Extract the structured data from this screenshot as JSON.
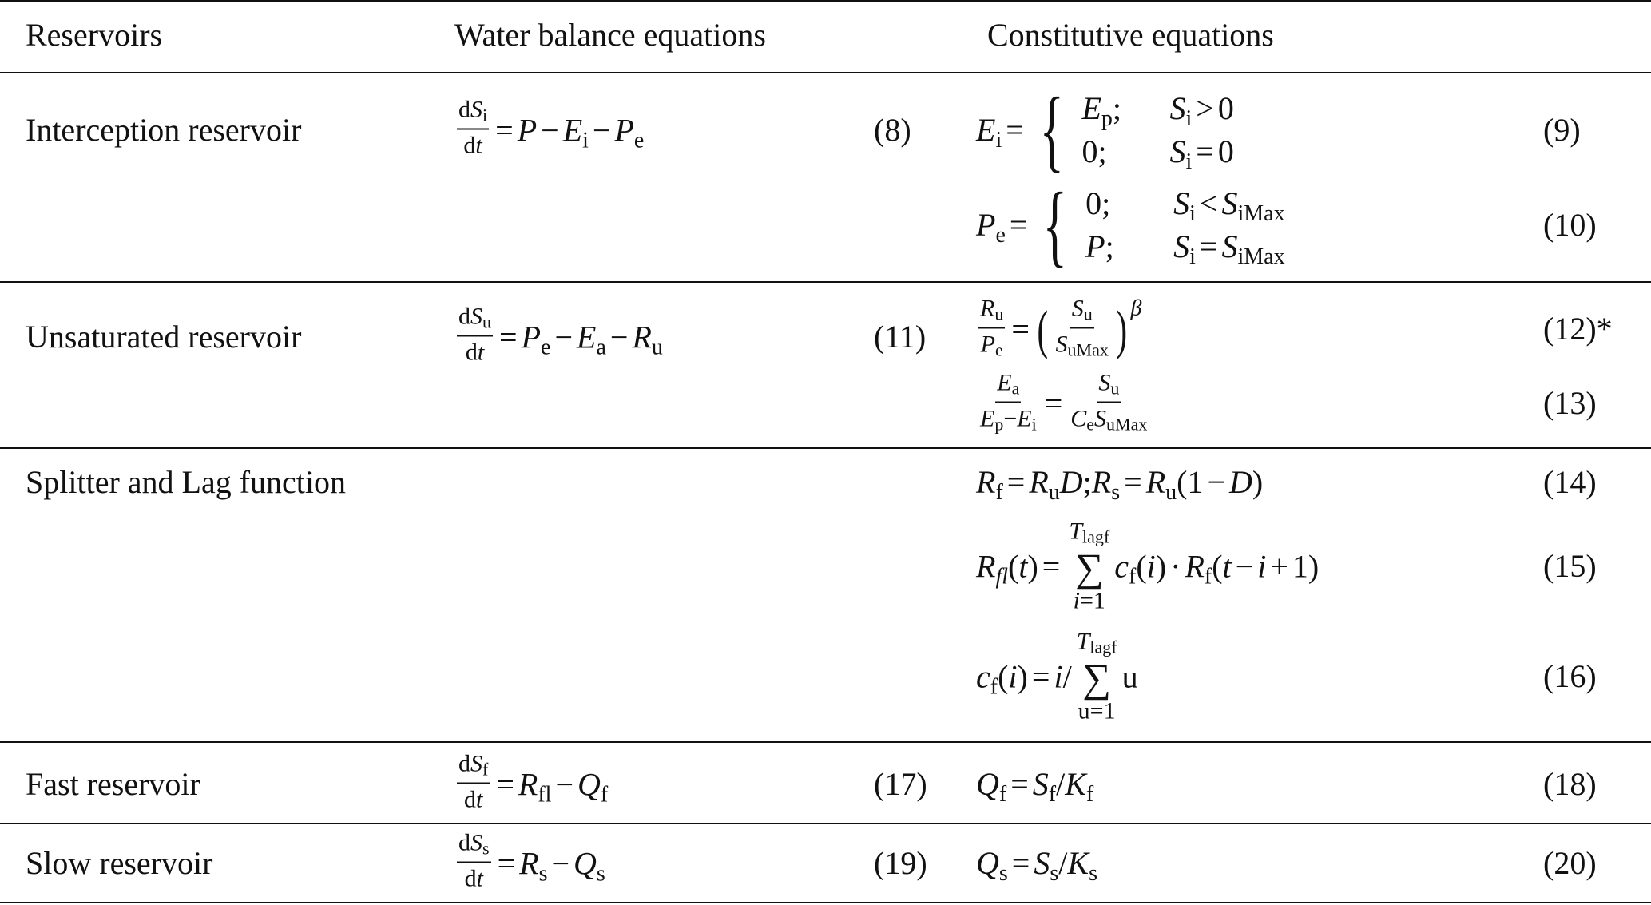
{
  "headers": {
    "reservoirs": "Reservoirs",
    "water_balance": "Water balance equations",
    "constitutive": "Constitutive equations"
  },
  "rows": [
    {
      "name": "Interception reservoir",
      "balance": {
        "num": "(8)",
        "eq": [
          {
            "frac": {
              "n": [
                "d",
                {
                  "v": "S",
                  "sub": "i"
                }
              ],
              "d": [
                "d",
                {
                  "v": "t"
                }
              ]
            }
          },
          {
            "op": "="
          },
          {
            "v": "P"
          },
          {
            "op": "−"
          },
          {
            "v": "E",
            "sub": "i"
          },
          {
            "op": "−"
          },
          {
            "v": "P",
            "sub": "e"
          }
        ]
      },
      "constitutive": [
        {
          "num": "(9)",
          "eq": [
            {
              "v": "E",
              "sub": "i"
            },
            {
              "op": "="
            },
            {
              "cases": [
                [
                  [
                    {
                      "v": "E",
                      "sub": "p"
                    },
                    ";"
                  ],
                  [
                    {
                      "v": "S",
                      "sub": "i"
                    },
                    {
                      "op": ">"
                    },
                    "0"
                  ]
                ],
                [
                  [
                    "0;"
                  ],
                  [
                    {
                      "v": "S",
                      "sub": "i"
                    },
                    {
                      "op": "="
                    },
                    "0"
                  ]
                ]
              ]
            }
          ]
        },
        {
          "num": "(10)",
          "eq": [
            {
              "v": "P",
              "sub": "e"
            },
            {
              "op": "="
            },
            {
              "cases": [
                [
                  [
                    "0;"
                  ],
                  [
                    {
                      "v": "S",
                      "sub": "i"
                    },
                    {
                      "op": "<"
                    },
                    {
                      "v": "S",
                      "sub": "iMax"
                    }
                  ]
                ],
                [
                  [
                    {
                      "v": "P"
                    },
                    ";"
                  ],
                  [
                    {
                      "v": "S",
                      "sub": "i"
                    },
                    {
                      "op": "="
                    },
                    {
                      "v": "S",
                      "sub": "iMax"
                    }
                  ]
                ]
              ]
            }
          ]
        }
      ]
    },
    {
      "name": "Unsaturated reservoir",
      "balance": {
        "num": "(11)",
        "eq": [
          {
            "frac": {
              "n": [
                "d",
                {
                  "v": "S",
                  "sub": "u"
                }
              ],
              "d": [
                "d",
                {
                  "v": "t"
                }
              ]
            }
          },
          {
            "op": "="
          },
          {
            "v": "P",
            "sub": "e"
          },
          {
            "op": "−"
          },
          {
            "v": "E",
            "sub": "a"
          },
          {
            "op": "−"
          },
          {
            "v": "R",
            "sub": "u"
          }
        ]
      },
      "constitutive": [
        {
          "num": "(12)*",
          "eq": [
            {
              "frac": {
                "n": [
                  {
                    "v": "R",
                    "sub": "u"
                  }
                ],
                "d": [
                  {
                    "v": "P",
                    "sub": "e"
                  }
                ]
              }
            },
            {
              "op": "="
            },
            {
              "paren": [
                {
                  "frac": {
                    "n": [
                      {
                        "v": "S",
                        "sub": "u"
                      }
                    ],
                    "d": [
                      {
                        "v": "S",
                        "sub": "uMax"
                      }
                    ]
                  }
                }
              ],
              "sup": "β"
            }
          ]
        },
        {
          "num": "(13)",
          "eq": [
            {
              "frac": {
                "n": [
                  {
                    "v": "E",
                    "sub": "a"
                  }
                ],
                "d": [
                  {
                    "v": "E",
                    "sub": "p"
                  },
                  "−",
                  {
                    "v": "E",
                    "sub": "i"
                  }
                ]
              }
            },
            {
              "op": "="
            },
            {
              "frac": {
                "n": [
                  {
                    "v": "S",
                    "sub": "u"
                  }
                ],
                "d": [
                  {
                    "v": "C",
                    "sub": "e"
                  },
                  {
                    "v": "S",
                    "sub": "uMax"
                  }
                ]
              }
            }
          ]
        }
      ]
    },
    {
      "name": "Splitter and Lag function",
      "balance": null,
      "constitutive": [
        {
          "num": "(14)",
          "eq": [
            {
              "v": "R",
              "sub": "f"
            },
            {
              "op": "="
            },
            {
              "v": "R",
              "sub": "u"
            },
            {
              "v": "D"
            },
            ";  ",
            {
              "v": "R",
              "sub": "s"
            },
            {
              "op": "="
            },
            {
              "v": "R",
              "sub": "u"
            },
            "(1",
            {
              "op": "−"
            },
            {
              "v": "D"
            },
            ")"
          ]
        },
        {
          "num": "(15)",
          "eq": [
            {
              "v": "R",
              "subi": "fl"
            },
            "(",
            {
              "v": "t"
            },
            ")",
            {
              "op": "="
            },
            {
              "sum": {
                "top": [
                  {
                    "v": "T",
                    "sub": "lagf"
                  }
                ],
                "bot": [
                  {
                    "v": "i"
                  },
                  "=1"
                ]
              }
            },
            {
              "v": "c",
              "sub": "f"
            },
            "(",
            {
              "v": "i"
            },
            ")",
            {
              "op": "·"
            },
            {
              "v": "R",
              "sub": "f"
            },
            "(",
            {
              "v": "t"
            },
            {
              "op": "−"
            },
            {
              "v": "i"
            },
            {
              "op": "+"
            },
            "1)"
          ]
        },
        {
          "num": "(16)",
          "eq": [
            {
              "v": "c",
              "sub": "f"
            },
            "(",
            {
              "v": "i"
            },
            ")",
            {
              "op": "="
            },
            {
              "v": "i"
            },
            "/",
            {
              "sum": {
                "top": [
                  {
                    "v": "T",
                    "sub": "lagf"
                  }
                ],
                "bot": [
                  "u=1"
                ]
              }
            },
            "u"
          ]
        }
      ]
    },
    {
      "name": "Fast reservoir",
      "balance": {
        "num": "(17)",
        "eq": [
          {
            "frac": {
              "n": [
                "d",
                {
                  "v": "S",
                  "sub": "f"
                }
              ],
              "d": [
                "d",
                {
                  "v": "t"
                }
              ]
            }
          },
          {
            "op": "="
          },
          {
            "v": "R",
            "sub": "fl"
          },
          {
            "op": "−"
          },
          {
            "v": "Q",
            "sub": "f"
          }
        ]
      },
      "constitutive": [
        {
          "num": "(18)",
          "eq": [
            {
              "v": "Q",
              "sub": "f"
            },
            {
              "op": "="
            },
            {
              "v": "S",
              "sub": "f"
            },
            "/",
            {
              "v": "K",
              "sub": "f"
            }
          ]
        }
      ]
    },
    {
      "name": "Slow reservoir",
      "balance": {
        "num": "(19)",
        "eq": [
          {
            "frac": {
              "n": [
                "d",
                {
                  "v": "S",
                  "sub": "s"
                }
              ],
              "d": [
                "d",
                {
                  "v": "t"
                }
              ]
            }
          },
          {
            "op": "="
          },
          {
            "v": "R",
            "sub": "s"
          },
          {
            "op": "−"
          },
          {
            "v": "Q",
            "sub": "s"
          }
        ]
      },
      "constitutive": [
        {
          "num": "(20)",
          "eq": [
            {
              "v": "Q",
              "sub": "s"
            },
            {
              "op": "="
            },
            {
              "v": "S",
              "sub": "s"
            },
            "/",
            {
              "v": "K",
              "sub": "s"
            }
          ]
        }
      ]
    }
  ]
}
